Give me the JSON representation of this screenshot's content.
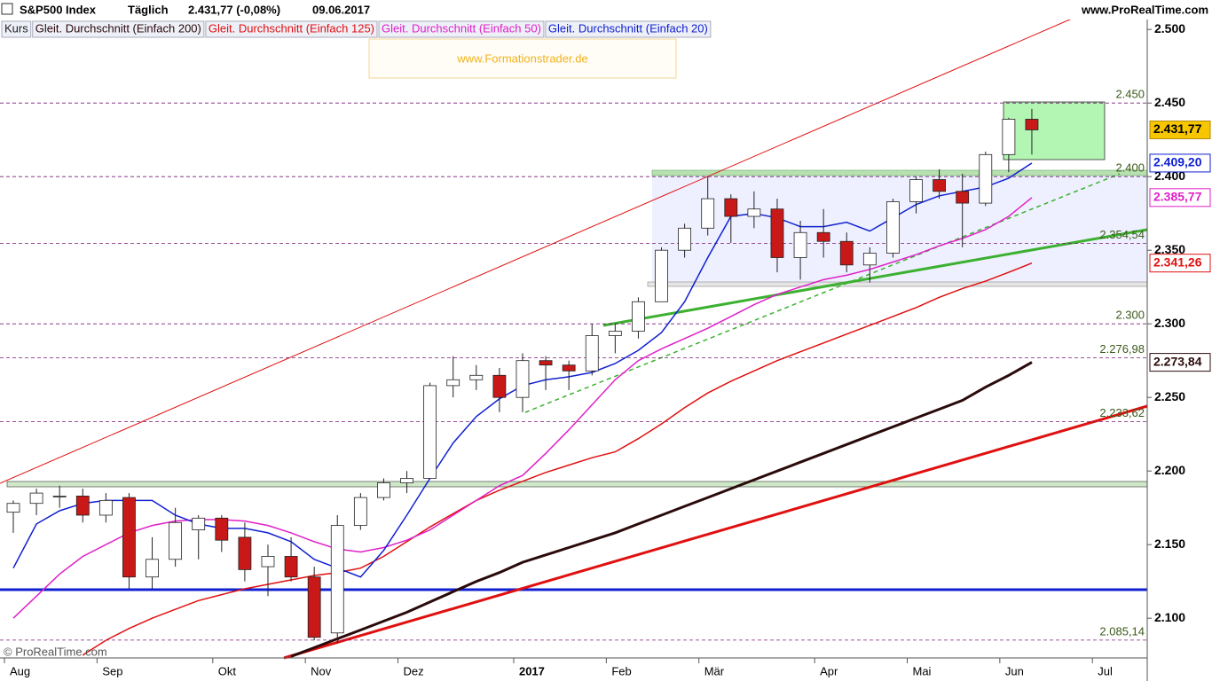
{
  "header": {
    "instrument": "S&P500 Index",
    "period": "Täglich",
    "quote": "2.431,77 (-0,08%)",
    "date": "09.06.2017",
    "site": "www.ProRealTime.com",
    "watermark": "www.Formationstrader.de",
    "copyright": "© ProRealTime.com"
  },
  "chart_data": {
    "type": "candlestick",
    "legend": [
      "Kurs",
      "Gleit. Durchschnitt (Einfach 200)",
      "Gleit. Durchschnitt (Einfach 125)",
      "Gleit. Durchschnitt (Einfach 50)",
      "Gleit. Durchschnitt (Einfach 20)"
    ],
    "categories": [
      "Aug",
      null,
      null,
      null,
      "Sep",
      null,
      null,
      null,
      null,
      "Okt",
      null,
      null,
      null,
      "Nov",
      null,
      null,
      null,
      "Dez",
      null,
      null,
      null,
      null,
      "2017",
      null,
      null,
      null,
      "Feb",
      null,
      null,
      null,
      "Mär",
      null,
      null,
      null,
      null,
      "Apr",
      null,
      null,
      null,
      "Mai",
      null,
      null,
      null,
      "Jun",
      null,
      null,
      null,
      "Jul",
      null
    ],
    "candles": {
      "open": [
        2172,
        2178,
        2183,
        2183,
        2170,
        2182,
        2128,
        2140,
        2160,
        2168,
        2155,
        2135,
        2142,
        2128,
        2090,
        2163,
        2182,
        2192,
        2195,
        2258,
        2262,
        2265,
        2250,
        2275,
        2272,
        2268,
        2292,
        2295,
        2315,
        2350,
        2365,
        2385,
        2373,
        2378,
        2345,
        2362,
        2356,
        2340,
        2348,
        2383,
        2398,
        2390,
        2382,
        2415,
        2439,
        null,
        null,
        null,
        null
      ],
      "high": [
        2180,
        2188,
        2190,
        2188,
        2185,
        2185,
        2155,
        2175,
        2170,
        2170,
        2165,
        2150,
        2155,
        2135,
        2170,
        2185,
        2195,
        2200,
        2260,
        2278,
        2272,
        2270,
        2280,
        2278,
        2275,
        2300,
        2300,
        2318,
        2352,
        2368,
        2400,
        2388,
        2390,
        2385,
        2370,
        2378,
        2362,
        2352,
        2385,
        2400,
        2405,
        2402,
        2417,
        2440,
        2446,
        null,
        null,
        null,
        null
      ],
      "low": [
        2158,
        2170,
        2175,
        2165,
        2165,
        2120,
        2120,
        2135,
        2140,
        2145,
        2125,
        2115,
        2125,
        2085,
        2083,
        2160,
        2180,
        2185,
        2195,
        2250,
        2255,
        2240,
        2240,
        2255,
        2255,
        2265,
        2280,
        2290,
        2315,
        2345,
        2360,
        2355,
        2365,
        2335,
        2330,
        2345,
        2335,
        2328,
        2345,
        2375,
        2385,
        2352,
        2380,
        2403,
        2415,
        null,
        null,
        null,
        null
      ],
      "close": [
        2178,
        2185,
        2183,
        2170,
        2180,
        2128,
        2140,
        2165,
        2168,
        2153,
        2133,
        2142,
        2128,
        2087,
        2163,
        2182,
        2192,
        2195,
        2258,
        2262,
        2265,
        2250,
        2275,
        2272,
        2268,
        2292,
        2295,
        2315,
        2350,
        2365,
        2385,
        2373,
        2378,
        2345,
        2362,
        2356,
        2340,
        2348,
        2383,
        2398,
        2390,
        2382,
        2415,
        2439,
        2431.77,
        null,
        null,
        null,
        null
      ],
      "close_label": "2.431,77",
      "up_color": "#ffffff",
      "down_color": "#c81818"
    },
    "series": [
      {
        "name": "Gleit. Durchschnitt (Einfach 200)",
        "color": "#2a0a0a",
        "width": 3,
        "last_label": "2.273,84",
        "values": [
          null,
          null,
          null,
          null,
          null,
          null,
          null,
          null,
          null,
          null,
          null,
          null,
          2074,
          2080,
          2086,
          2092,
          2098,
          2104,
          2111,
          2118,
          2125,
          2131,
          2138,
          2143,
          2148,
          2153,
          2158,
          2164,
          2170,
          2176,
          2182,
          2188,
          2194,
          2200,
          2206,
          2212,
          2218,
          2224,
          2230,
          2236,
          2242,
          2248,
          2257,
          2265,
          2273.84,
          null,
          null,
          null,
          null
        ]
      },
      {
        "name": "Gleit. Durchschnitt (Einfach 125)",
        "color": "#e01010",
        "width": 1.5,
        "last_label": "2.341,26",
        "values": [
          null,
          null,
          null,
          2075,
          2085,
          2093,
          2100,
          2106,
          2112,
          2116,
          2120,
          2123,
          2126,
          2129,
          2131,
          2134,
          2142,
          2152,
          2162,
          2171,
          2180,
          2187,
          2193,
          2199,
          2204,
          2209,
          2213,
          2222,
          2232,
          2243,
          2253,
          2261,
          2268,
          2275,
          2281,
          2287,
          2293,
          2299,
          2305,
          2311,
          2318,
          2324,
          2329,
          2335,
          2341.26,
          null,
          null,
          null,
          null
        ]
      },
      {
        "name": "Gleit. Durchschnitt (Einfach 50)",
        "color": "#e020c8",
        "width": 1.5,
        "last_label": "2.385,77",
        "values": [
          2100,
          2115,
          2130,
          2142,
          2150,
          2158,
          2163,
          2166,
          2167,
          2167,
          2166,
          2163,
          2158,
          2152,
          2147,
          2145,
          2148,
          2153,
          2160,
          2170,
          2180,
          2190,
          2197,
          2212,
          2228,
          2245,
          2262,
          2275,
          2283,
          2290,
          2297,
          2305,
          2313,
          2320,
          2325,
          2330,
          2333,
          2337,
          2342,
          2347,
          2353,
          2358,
          2364,
          2373,
          2385.77,
          null,
          null,
          null,
          null
        ]
      },
      {
        "name": "Gleit. Durchschnitt (Einfach 20)",
        "color": "#1020d0",
        "width": 1.5,
        "last_label": "2.409,20",
        "values": [
          2134,
          2164,
          2173,
          2178,
          2180,
          2180,
          2180,
          2170,
          2164,
          2161,
          2161,
          2158,
          2152,
          2140,
          2134,
          2128,
          2146,
          2170,
          2195,
          2219,
          2237,
          2249,
          2258,
          2262,
          2264,
          2267,
          2273,
          2282,
          2294,
          2315,
          2345,
          2373,
          2375,
          2372,
          2366,
          2366,
          2369,
          2363,
          2372,
          2381,
          2387,
          2390,
          2393,
          2399,
          2409.2,
          null,
          null,
          null,
          null
        ]
      }
    ],
    "levels": [
      {
        "value": 2450,
        "label": "2.450"
      },
      {
        "value": 2400,
        "label": "2.400"
      },
      {
        "value": 2354.54,
        "label": "2.354,54"
      },
      {
        "value": 2300,
        "label": "2.300"
      },
      {
        "value": 2276.98,
        "label": "2.276,98"
      },
      {
        "value": 2233.62,
        "label": "2.233,62"
      },
      {
        "value": 2085.14,
        "label": "2.085,14"
      }
    ],
    "ylim": [
      2073,
      2520
    ],
    "yticks": [
      {
        "value": 2100,
        "label": "2.100"
      },
      {
        "value": 2150,
        "label": "2.150"
      },
      {
        "value": 2200,
        "label": "2.200"
      },
      {
        "value": 2250,
        "label": "2.250"
      },
      {
        "value": 2300,
        "label": "2.300"
      },
      {
        "value": 2350,
        "label": "2.350"
      },
      {
        "value": 2400,
        "label": "2.400"
      },
      {
        "value": 2450,
        "label": "2.450"
      },
      {
        "value": 2500,
        "label": "2.500"
      }
    ]
  }
}
